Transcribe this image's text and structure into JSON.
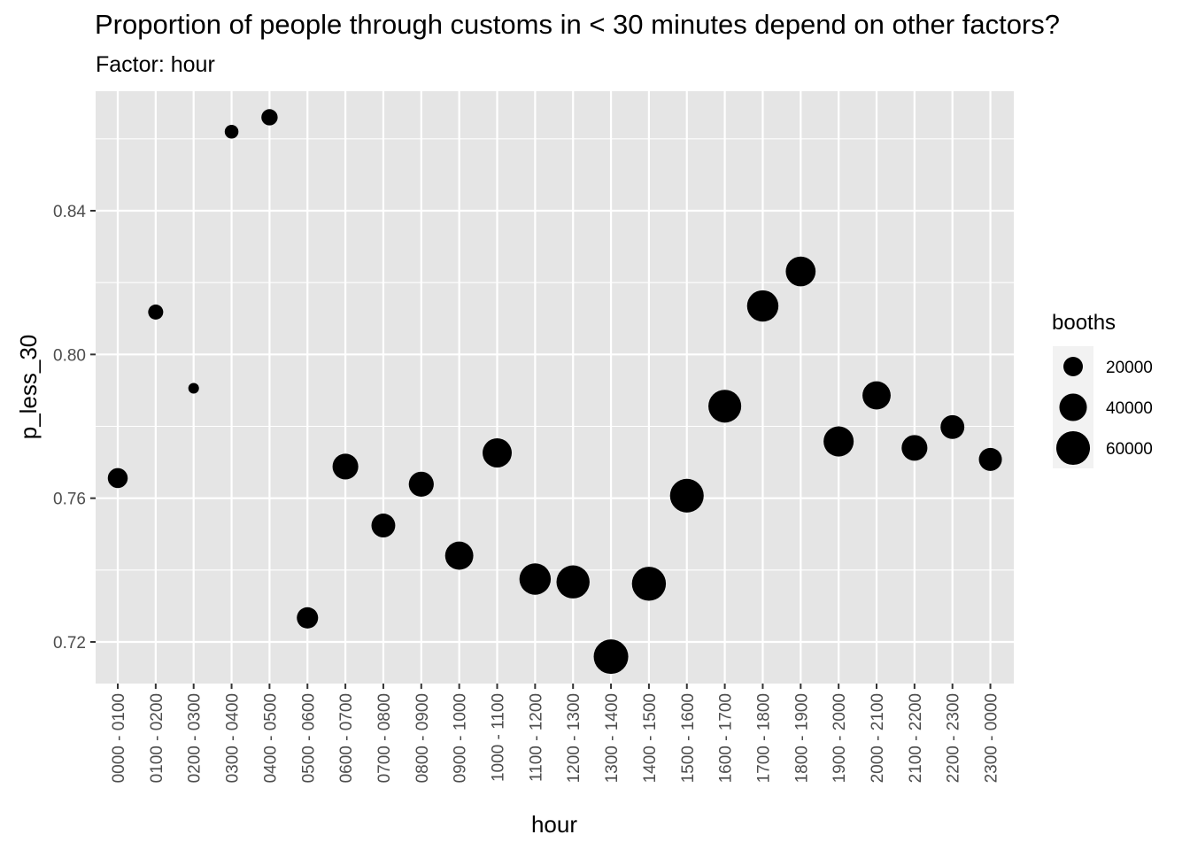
{
  "title": "Proportion of people through customs in < 30 minutes depend on other factors?",
  "subtitle": "Factor: hour",
  "chart_data": {
    "type": "scatter",
    "xlabel": "hour",
    "ylabel": "p_less_30",
    "categories": [
      "0000 - 0100",
      "0100 - 0200",
      "0200 - 0300",
      "0300 - 0400",
      "0400 - 0500",
      "0500 - 0600",
      "0600 - 0700",
      "0700 - 0800",
      "0800 - 0900",
      "0900 - 1000",
      "1000 - 1100",
      "1100 - 1200",
      "1200 - 1300",
      "1300 - 1400",
      "1400 - 1500",
      "1500 - 1600",
      "1600 - 1700",
      "1700 - 1800",
      "1800 - 1900",
      "1900 - 2000",
      "2000 - 2100",
      "2100 - 2200",
      "2200 - 2300",
      "2300 - 0000"
    ],
    "y": [
      0.7656,
      0.8118,
      0.7906,
      0.862,
      0.866,
      0.7267,
      0.7688,
      0.7524,
      0.7639,
      0.744,
      0.7726,
      0.7375,
      0.7367,
      0.7159,
      0.7362,
      0.7607,
      0.7856,
      0.8135,
      0.8231,
      0.7758,
      0.7886,
      0.774,
      0.7798,
      0.7708
    ],
    "size": [
      21000,
      12000,
      6000,
      10000,
      14000,
      24000,
      35000,
      30000,
      33000,
      42000,
      45000,
      52000,
      58000,
      63000,
      61000,
      60000,
      57000,
      52000,
      47000,
      48000,
      42000,
      35000,
      30000,
      28000
    ],
    "size_legend": {
      "title": "booths",
      "breaks": [
        20000,
        40000,
        60000
      ]
    },
    "yticks": [
      0.72,
      0.76,
      0.8,
      0.84
    ],
    "yticklabels": [
      "0.72",
      "0.76",
      "0.80",
      "0.84"
    ],
    "ylim": [
      0.7102,
      0.874
    ],
    "grid": true,
    "legend_position": "right",
    "point_color": "#000000",
    "panel_color": "#e5e5e5",
    "grid_color": "#ffffff"
  }
}
